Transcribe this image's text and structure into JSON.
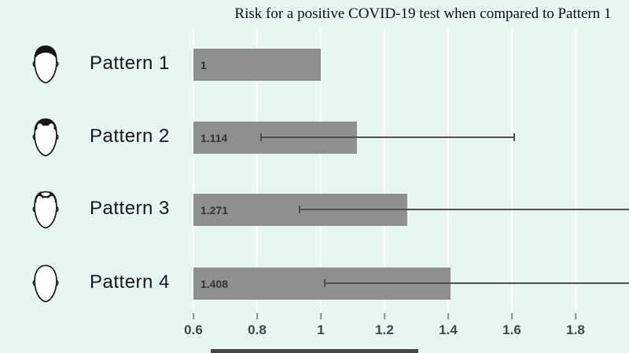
{
  "chart_data": {
    "type": "bar",
    "orientation": "horizontal",
    "title": "Risk for a positive COVID-19 test when compared to Pattern 1",
    "categories": [
      "Pattern 1",
      "Pattern 2",
      "Pattern 3",
      "Pattern 4"
    ],
    "category_icons": [
      "head-full-hair-icon",
      "head-receding-temples-icon",
      "head-frontal-balding-icon",
      "head-bald-icon"
    ],
    "values": [
      1,
      1.114,
      1.271,
      1.408
    ],
    "value_labels": [
      "1",
      "1.114",
      "1.271",
      "1.408"
    ],
    "error_bars": [
      null,
      {
        "low": 0.81,
        "high": 1.61,
        "high_clipped": false
      },
      {
        "low": 0.93,
        "high": null,
        "high_clipped": true
      },
      {
        "low": 1.01,
        "high": null,
        "high_clipped": true
      }
    ],
    "x_ticks": [
      0.6,
      0.8,
      1,
      1.2,
      1.4,
      1.6,
      1.8
    ],
    "x_tick_labels": [
      "0.6",
      "0.8",
      "1",
      "1.2",
      "1.4",
      "1.6",
      "1.8"
    ],
    "xlim": [
      0.6,
      1.97
    ],
    "grid": true,
    "legend": null,
    "bar_color": "#8e9090",
    "background_color": "#e7f6f3",
    "error_bar_color": "#4f4f4f"
  }
}
